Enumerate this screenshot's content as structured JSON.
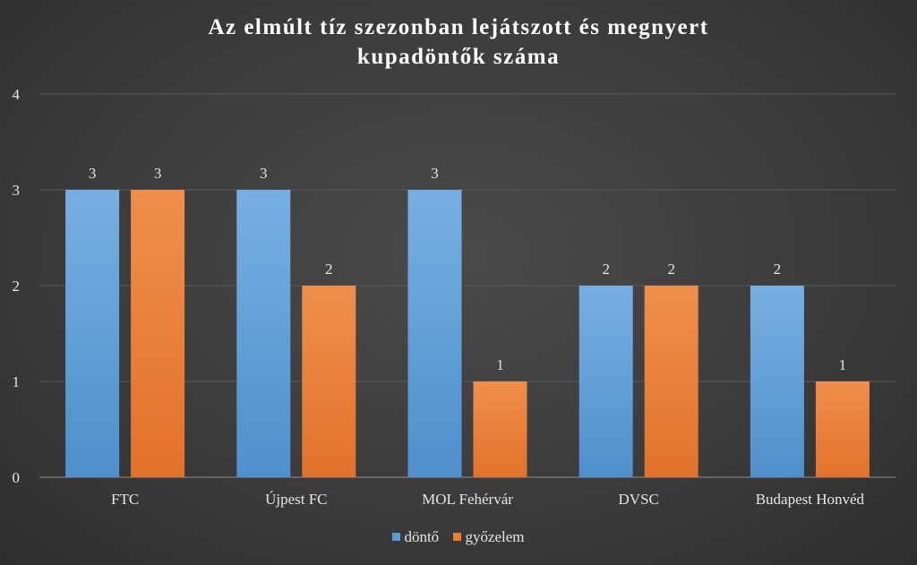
{
  "chart_data": {
    "type": "bar",
    "title_lines": [
      "Az elmúlt tíz szezonban lejátszott és megnyert",
      "kupadöntők száma"
    ],
    "categories": [
      "FTC",
      "Újpest FC",
      "MOL Fehérvár",
      "DVSC",
      "Budapest Honvéd"
    ],
    "series": [
      {
        "name": "döntő",
        "color": "#5b9bd5",
        "values": [
          3,
          3,
          3,
          2,
          2
        ]
      },
      {
        "name": "győzelem",
        "color": "#ed7d31",
        "values": [
          3,
          2,
          1,
          2,
          1
        ]
      }
    ],
    "ylim": [
      0,
      4
    ],
    "yticks": [
      0,
      1,
      2,
      3,
      4
    ],
    "grid": true,
    "legend_position": "bottom"
  }
}
